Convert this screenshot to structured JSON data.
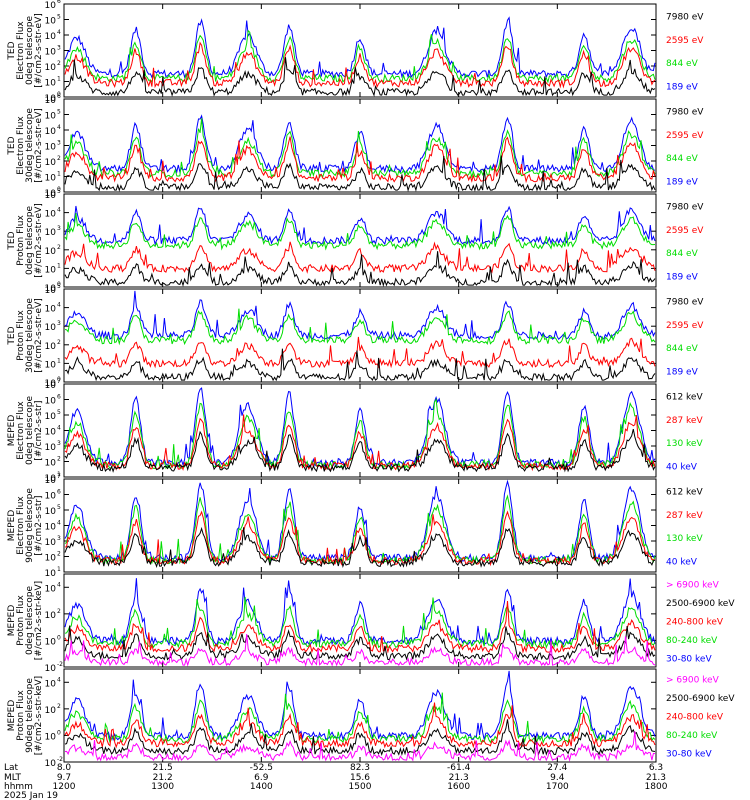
{
  "colors": {
    "black": "#000000",
    "red": "#ff0000",
    "green": "#00dd00",
    "blue": "#0000ff",
    "magenta": "#ff00ff"
  },
  "chart_data": [
    {
      "type": "line",
      "ylabel_lines": [
        "TED",
        "Electron Flux",
        "0deg telescope",
        "[#/cm2-s-str-eV]"
      ],
      "scale": "log",
      "ylim_exp": [
        0,
        6
      ],
      "y_ticks": [
        "10",
        "10",
        "10",
        "10",
        "10",
        "10",
        "10"
      ],
      "y_tick_exps": [
        "0",
        "1",
        "2",
        "3",
        "4",
        "5",
        "6"
      ],
      "legend": [
        {
          "label": "7980 eV",
          "color": "black"
        },
        {
          "label": "2595 eV",
          "color": "red"
        },
        {
          "label": "844 eV",
          "color": "green"
        },
        {
          "label": "189 eV",
          "color": "blue"
        }
      ]
    },
    {
      "type": "line",
      "ylabel_lines": [
        "TED",
        "Electron Flux",
        "30deg telescope",
        "[#/cm2-s-str-eV]"
      ],
      "scale": "log",
      "ylim_exp": [
        0,
        6
      ],
      "y_ticks": [
        "10",
        "10",
        "10",
        "10",
        "10",
        "10",
        "10"
      ],
      "y_tick_exps": [
        "0",
        "1",
        "2",
        "3",
        "4",
        "5",
        "6"
      ],
      "legend": [
        {
          "label": "7980 eV",
          "color": "black"
        },
        {
          "label": "2595 eV",
          "color": "red"
        },
        {
          "label": "844 eV",
          "color": "green"
        },
        {
          "label": "189 eV",
          "color": "blue"
        }
      ]
    },
    {
      "type": "line",
      "ylabel_lines": [
        "TED",
        "Proton Flux",
        "0deg telescope",
        "[#/cm2-s-str-eV]"
      ],
      "scale": "log",
      "ylim_exp": [
        0,
        5
      ],
      "y_ticks": [
        "10",
        "10",
        "10",
        "10",
        "10",
        "10"
      ],
      "y_tick_exps": [
        "0",
        "1",
        "2",
        "3",
        "4",
        "5"
      ],
      "legend": [
        {
          "label": "7980 eV",
          "color": "black"
        },
        {
          "label": "2595 eV",
          "color": "red"
        },
        {
          "label": "844 eV",
          "color": "green"
        },
        {
          "label": "189 eV",
          "color": "blue"
        }
      ]
    },
    {
      "type": "line",
      "ylabel_lines": [
        "TED",
        "Proton Flux",
        "30deg telescope",
        "[#/cm2-s-str-eV]"
      ],
      "scale": "log",
      "ylim_exp": [
        0,
        5
      ],
      "y_ticks": [
        "10",
        "10",
        "10",
        "10",
        "10",
        "10"
      ],
      "y_tick_exps": [
        "0",
        "1",
        "2",
        "3",
        "4",
        "5"
      ],
      "legend": [
        {
          "label": "7980 eV",
          "color": "black"
        },
        {
          "label": "2595 eV",
          "color": "red"
        },
        {
          "label": "844 eV",
          "color": "green"
        },
        {
          "label": "189 eV",
          "color": "blue"
        }
      ]
    },
    {
      "type": "line",
      "ylabel_lines": [
        "MEPED",
        "Electron Flux",
        "0deg telescope",
        "[#/cm2-s-str]"
      ],
      "scale": "log",
      "ylim_exp": [
        1,
        7
      ],
      "y_ticks": [
        "10",
        "10",
        "10",
        "10",
        "10",
        "10",
        "10"
      ],
      "y_tick_exps": [
        "1",
        "2",
        "3",
        "4",
        "5",
        "6",
        "7"
      ],
      "legend": [
        {
          "label": "612 keV",
          "color": "black"
        },
        {
          "label": "287 keV",
          "color": "red"
        },
        {
          "label": "130 keV",
          "color": "green"
        },
        {
          "label": "40 keV",
          "color": "blue"
        }
      ]
    },
    {
      "type": "line",
      "ylabel_lines": [
        "MEPED",
        "Electron Flux",
        "90deg telescope",
        "[#/cm2-s-str]"
      ],
      "scale": "log",
      "ylim_exp": [
        1,
        7
      ],
      "y_ticks": [
        "10",
        "10",
        "10",
        "10",
        "10",
        "10",
        "10"
      ],
      "y_tick_exps": [
        "1",
        "2",
        "3",
        "4",
        "5",
        "6",
        "7"
      ],
      "legend": [
        {
          "label": "612 keV",
          "color": "black"
        },
        {
          "label": "287 keV",
          "color": "red"
        },
        {
          "label": "130 keV",
          "color": "green"
        },
        {
          "label": "40 keV",
          "color": "blue"
        }
      ]
    },
    {
      "type": "line",
      "ylabel_lines": [
        "MEPED",
        "Proton Flux",
        "0deg telescope",
        "[#/cm2-s-str-keV]"
      ],
      "scale": "log",
      "ylim_exp": [
        -2,
        5
      ],
      "y_ticks": [
        "10",
        "10",
        "10",
        "10"
      ],
      "y_tick_exps": [
        "-2",
        "0",
        "2",
        "4"
      ],
      "legend": [
        {
          "label": "> 6900 keV",
          "color": "magenta"
        },
        {
          "label": "2500-6900 keV",
          "color": "black"
        },
        {
          "label": "240-800 keV",
          "color": "red"
        },
        {
          "label": "80-240 keV",
          "color": "green"
        },
        {
          "label": "30-80 keV",
          "color": "blue"
        }
      ]
    },
    {
      "type": "line",
      "ylabel_lines": [
        "MEPED",
        "Proton Flux",
        "90deg telescope",
        "[#/cm2-s-str-keV]"
      ],
      "scale": "log",
      "ylim_exp": [
        -2,
        5
      ],
      "y_ticks": [
        "10",
        "10",
        "10",
        "10"
      ],
      "y_tick_exps": [
        "-2",
        "0",
        "2",
        "4"
      ],
      "legend": [
        {
          "label": "> 6900 keV",
          "color": "magenta"
        },
        {
          "label": "2500-6900 keV",
          "color": "black"
        },
        {
          "label": "240-800 keV",
          "color": "red"
        },
        {
          "label": "80-240 keV",
          "color": "green"
        },
        {
          "label": "30-80 keV",
          "color": "blue"
        }
      ]
    }
  ],
  "x_axis": {
    "row_labels": [
      "Lat",
      "MLT",
      "hhmm",
      "2025 Jan 19"
    ],
    "ticks": [
      {
        "lat": "8.0",
        "mlt": "9.7",
        "hhmm": "1200"
      },
      {
        "lat": "21.5",
        "mlt": "21.2",
        "hhmm": "1300"
      },
      {
        "lat": "-52.5",
        "mlt": "6.9",
        "hhmm": "1400"
      },
      {
        "lat": "82.3",
        "mlt": "15.6",
        "hhmm": "1500"
      },
      {
        "lat": "-61.4",
        "mlt": "21.3",
        "hhmm": "1600"
      },
      {
        "lat": "27.4",
        "mlt": "9.4",
        "hhmm": "1700"
      },
      {
        "lat": "6.3",
        "mlt": "21.3",
        "hhmm": "1800"
      }
    ]
  }
}
